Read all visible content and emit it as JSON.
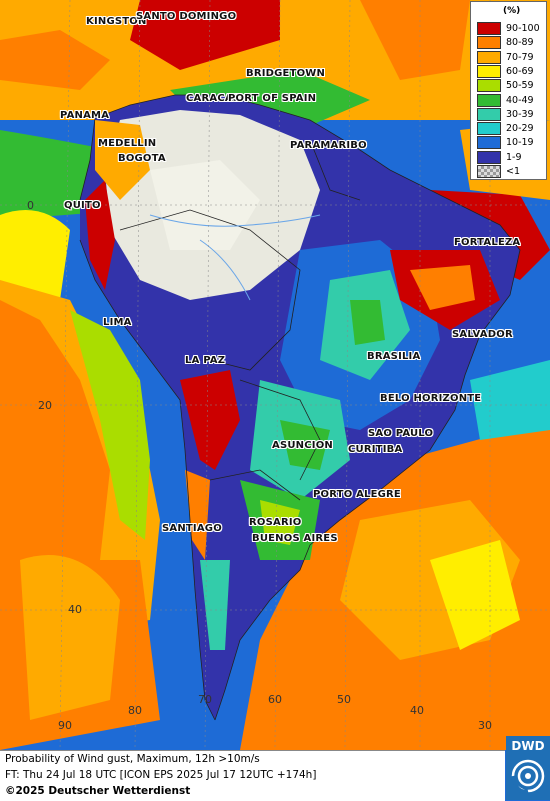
{
  "legend": {
    "title": "(%)",
    "items": [
      {
        "label": "90-100",
        "color": "#cc0000"
      },
      {
        "label": "80-89",
        "color": "#ff7f00"
      },
      {
        "label": "70-79",
        "color": "#ffaa00"
      },
      {
        "label": "60-69",
        "color": "#ffee00"
      },
      {
        "label": "50-59",
        "color": "#aadd00"
      },
      {
        "label": "40-49",
        "color": "#33bb33"
      },
      {
        "label": "30-39",
        "color": "#33ccaa"
      },
      {
        "label": "20-29",
        "color": "#22cccc"
      },
      {
        "label": "10-19",
        "color": "#1e6bd6"
      },
      {
        "label": "1-9",
        "color": "#3333aa"
      },
      {
        "label": "<1",
        "color": "#bfbfbf"
      }
    ]
  },
  "cities": {
    "kingston": "KINGSTON",
    "santo_domingo": "SANTO DOMINGO",
    "bridgetown": "BRIDGETOWN",
    "caracas": "CARACAS",
    "port_of_spain": "PORT OF SPAIN",
    "panama": "PANAMA",
    "medellin": "MEDELLIN",
    "bogota": "BOGOTA",
    "paramaribo": "PARAMARIBO",
    "quito": "QUITO",
    "fortaleza": "FORTALEZA",
    "lima": "LIMA",
    "salvador": "SALVADOR",
    "brasilia": "BRASILIA",
    "la_paz": "LA PAZ",
    "belo_horizonte": "BELO HORIZONTE",
    "sao_paulo": "SAO PAULO",
    "asuncion": "ASUNCION",
    "curitiba": "CURITIBA",
    "porto_alegre": "PORTO ALEGRE",
    "santiago": "SANTIAGO",
    "rosario": "ROSARIO",
    "buenos_aires": "BUENOS AIRES"
  },
  "grid_labels": {
    "lat_0": "0",
    "lat_20": "20",
    "lat_40": "40",
    "lon_90": "90",
    "lon_80": "80",
    "lon_70": "70",
    "lon_60": "60",
    "lon_50": "50",
    "lon_40": "40",
    "lon_30": "30"
  },
  "footer": {
    "line1": "Probability of Wind gust, Maximum, 12h >10m/s",
    "line2": "FT: Thu 24 Jul 18 UTC [ICON EPS 2025 Jul 17 12UTC +174h]",
    "line3": "©2025 Deutscher Wetterdienst"
  },
  "logo": {
    "text": "DWD"
  }
}
